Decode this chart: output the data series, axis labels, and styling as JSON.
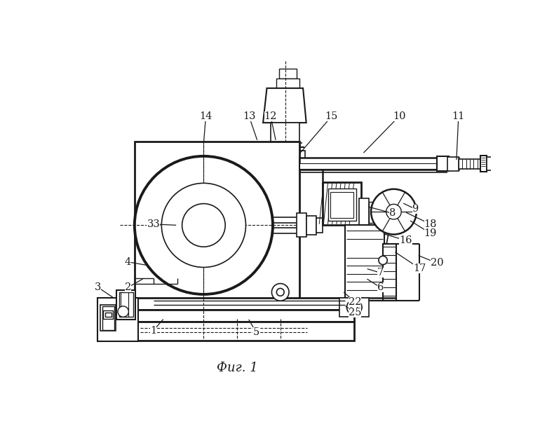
{
  "title": "Фиг. 1",
  "bg": "#ffffff",
  "lc": "#1a1a1a",
  "figsize": [
    7.8,
    6.25
  ],
  "dpi": 100,
  "annotations": [
    [
      "1",
      155,
      515,
      175,
      492
    ],
    [
      "2",
      108,
      435,
      138,
      418
    ],
    [
      "3",
      52,
      435,
      82,
      455
    ],
    [
      "4",
      108,
      388,
      148,
      395
    ],
    [
      "5",
      345,
      518,
      330,
      492
    ],
    [
      "6",
      575,
      435,
      548,
      418
    ],
    [
      "7",
      575,
      408,
      548,
      400
    ],
    [
      "8",
      598,
      298,
      550,
      285
    ],
    [
      "9",
      640,
      290,
      615,
      278
    ],
    [
      "10",
      610,
      118,
      542,
      188
    ],
    [
      "11",
      720,
      118,
      716,
      202
    ],
    [
      "12",
      372,
      118,
      382,
      165
    ],
    [
      "13",
      332,
      118,
      348,
      165
    ],
    [
      "14",
      252,
      118,
      248,
      168
    ],
    [
      "15",
      485,
      118,
      425,
      188
    ],
    [
      "16",
      622,
      348,
      578,
      335
    ],
    [
      "17",
      648,
      400,
      600,
      368
    ],
    [
      "18",
      668,
      318,
      620,
      295
    ],
    [
      "19",
      668,
      335,
      628,
      310
    ],
    [
      "20",
      680,
      390,
      643,
      375
    ],
    [
      "22",
      528,
      462,
      505,
      442
    ],
    [
      "25",
      528,
      482,
      508,
      468
    ],
    [
      "33",
      155,
      318,
      200,
      320
    ]
  ]
}
